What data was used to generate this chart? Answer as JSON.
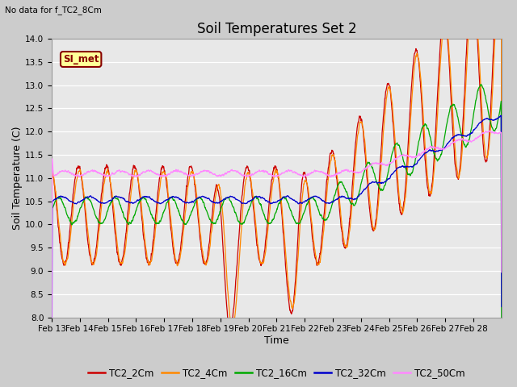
{
  "title": "Soil Temperatures Set 2",
  "subtitle": "No data for f_TC2_8Cm",
  "xlabel": "Time",
  "ylabel": "Soil Temperature (C)",
  "ylim": [
    8.0,
    14.0
  ],
  "yticks": [
    8.0,
    8.5,
    9.0,
    9.5,
    10.0,
    10.5,
    11.0,
    11.5,
    12.0,
    12.5,
    13.0,
    13.5,
    14.0
  ],
  "xtick_labels": [
    "Feb 13",
    "Feb 14",
    "Feb 15",
    "Feb 16",
    "Feb 17",
    "Feb 18",
    "Feb 19",
    "Feb 20",
    "Feb 21",
    "Feb 22",
    "Feb 23",
    "Feb 24",
    "Feb 25",
    "Feb 26",
    "Feb 27",
    "Feb 28"
  ],
  "series_colors": {
    "TC2_2Cm": "#cc0000",
    "TC2_4Cm": "#ff8800",
    "TC2_16Cm": "#00aa00",
    "TC2_32Cm": "#0000cc",
    "TC2_50Cm": "#ff88ff"
  },
  "si_met_box_facecolor": "#ffff99",
  "si_met_box_edgecolor": "#880000",
  "fig_facecolor": "#cccccc",
  "plot_bg_color": "#e8e8e8",
  "grid_color": "#ffffff",
  "title_fontsize": 12,
  "axis_label_fontsize": 9,
  "tick_fontsize": 7.5,
  "legend_fontsize": 8.5
}
